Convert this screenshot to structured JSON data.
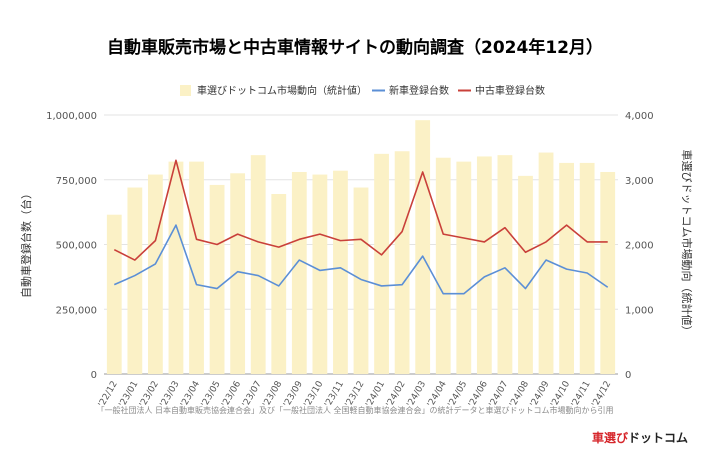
{
  "chart_data": {
    "type": "bar",
    "title": "自動車販売市場と中古車情報サイトの動向調査（2024年12月）",
    "categories": [
      "'22/12",
      "'23/01",
      "'23/02",
      "'23/03",
      "'23/04",
      "'23/05",
      "'23/06",
      "'23/07",
      "'23/08",
      "'23/09",
      "'23/10",
      "'23/11",
      "'23/12",
      "'24/01",
      "'24/02",
      "'24/03",
      "'24/04",
      "'24/05",
      "'24/06",
      "'24/07",
      "'24/08",
      "'24/09",
      "'24/10",
      "'24/11",
      "'24/12"
    ],
    "series": [
      {
        "name": "車選びドットコム市場動向（統計値）",
        "kind": "bar",
        "axis": "right",
        "color": "#fbf1c6",
        "values": [
          2460,
          2880,
          3080,
          3280,
          3280,
          2920,
          3100,
          3380,
          2780,
          3120,
          3080,
          3140,
          2880,
          3400,
          3440,
          3920,
          3340,
          3280,
          3360,
          3380,
          3060,
          3420,
          3260,
          3260,
          3120
        ]
      },
      {
        "name": "新車登録台数",
        "kind": "line",
        "axis": "left",
        "color": "#5b8fd6",
        "values": [
          345000,
          380000,
          425000,
          575000,
          345000,
          330000,
          395000,
          380000,
          340000,
          440000,
          400000,
          410000,
          365000,
          340000,
          345000,
          455000,
          310000,
          310000,
          375000,
          410000,
          330000,
          440000,
          405000,
          390000,
          335000
        ]
      },
      {
        "name": "中古車登録台数",
        "kind": "line",
        "axis": "left",
        "color": "#c9403a",
        "values": [
          480000,
          440000,
          515000,
          825000,
          520000,
          500000,
          540000,
          510000,
          490000,
          520000,
          540000,
          515000,
          520000,
          460000,
          550000,
          780000,
          540000,
          525000,
          510000,
          565000,
          470000,
          510000,
          575000,
          510000,
          510000
        ]
      }
    ],
    "ylabel_left": "自動車登録台数（台）",
    "ylabel_right": "車選びドットコム市場動向（統計値）",
    "ylim_left": [
      0,
      1000000
    ],
    "ylim_right": [
      0,
      4000
    ],
    "yticks_left": [
      "0",
      "250,000",
      "500,000",
      "750,000",
      "1,000,000"
    ],
    "yticks_right": [
      "0",
      "1,000",
      "2,000",
      "3,000",
      "4,000"
    ],
    "grid": true,
    "legend_position": "top"
  },
  "footer": {
    "source": "「一般社団法人 日本自動車販売協会連合会」及び「一般社団法人 全国軽自動車協会連合会」の統計データと車選びドットコム市場動向から引用",
    "logo_red": "車選び",
    "logo_dark": "ドットコム"
  }
}
